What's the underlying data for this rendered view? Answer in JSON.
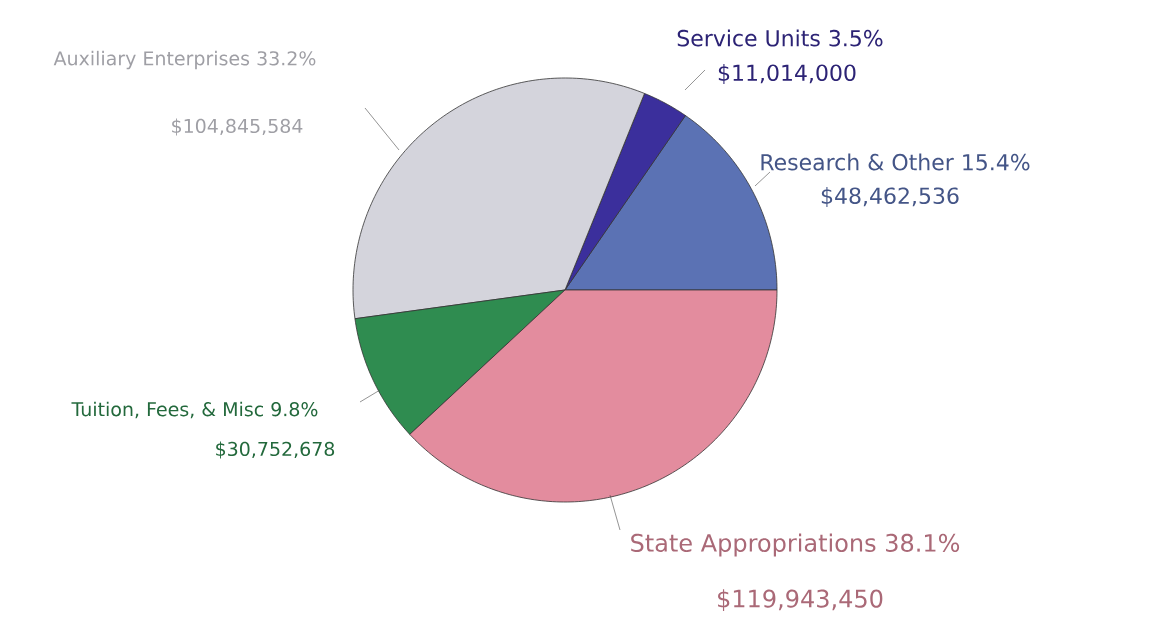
{
  "chart_data": {
    "type": "pie",
    "categories": [
      "Research & Other 15.4%",
      "Service Units 3.5%",
      "Auxiliary Enterprises 33.2%",
      "Tuition, Fees, & Misc 9.8%",
      "State Appropriations  38.1%"
    ],
    "values": [
      48462536,
      11014000,
      104845584,
      30752678,
      119943450
    ],
    "value_labels": [
      "$48,462,536",
      "$11,014,000",
      "$104,845,584",
      "$30,752,678",
      "$119,943,450"
    ],
    "colors": [
      "#5b72b4",
      "#3b2f9c",
      "#d4d4dc",
      "#2f8c50",
      "#e38c9e"
    ]
  }
}
